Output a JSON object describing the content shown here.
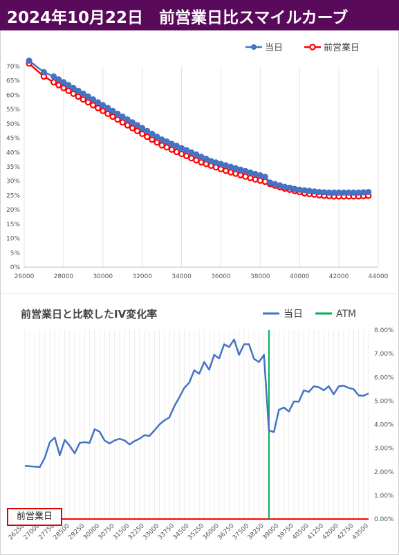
{
  "banner": {
    "title": "2024年10月22日　前営業日比スマイルカーブ",
    "bg_color": "#5a0a5a"
  },
  "chart_data": [
    {
      "type": "line",
      "title": "",
      "xlabel": "",
      "ylabel": "",
      "xlim": [
        26000,
        44000
      ],
      "ylim": [
        0,
        0.7
      ],
      "x_ticks": [
        26000,
        28000,
        30000,
        32000,
        34000,
        36000,
        38000,
        40000,
        42000,
        44000
      ],
      "y_ticks": [
        0,
        0.05,
        0.1,
        0.15,
        0.2,
        0.25,
        0.3,
        0.35,
        0.4,
        0.45,
        0.5,
        0.55,
        0.6,
        0.65,
        0.7
      ],
      "y_tick_labels": [
        "0%",
        "5%",
        "10%",
        "15%",
        "20%",
        "25%",
        "30%",
        "35%",
        "40%",
        "45%",
        "50%",
        "55%",
        "60%",
        "65%",
        "70%"
      ],
      "grid": "vertical",
      "legend_position": "top-right",
      "series": [
        {
          "name": "当日",
          "color": "#4472c4",
          "x": [
            26250,
            27000,
            27500,
            27750,
            28000,
            28250,
            28500,
            28750,
            29000,
            29250,
            29500,
            29750,
            30000,
            30250,
            30500,
            30750,
            31000,
            31250,
            31500,
            31750,
            32000,
            32250,
            32500,
            32750,
            33000,
            33250,
            33500,
            33750,
            34000,
            34250,
            34500,
            34750,
            35000,
            35250,
            35500,
            35750,
            36000,
            36250,
            36500,
            36750,
            37000,
            37250,
            37500,
            37750,
            38000,
            38250,
            38500,
            38750,
            39000,
            39250,
            39500,
            39750,
            40000,
            40250,
            40500,
            40750,
            41000,
            41250,
            41500,
            41750,
            42000,
            42250,
            42500,
            42750,
            43000,
            43250,
            43500
          ],
          "y": [
            0.72,
            0.68,
            0.665,
            0.655,
            0.645,
            0.635,
            0.625,
            0.615,
            0.605,
            0.595,
            0.585,
            0.575,
            0.565,
            0.555,
            0.545,
            0.535,
            0.525,
            0.515,
            0.505,
            0.495,
            0.485,
            0.475,
            0.465,
            0.455,
            0.445,
            0.438,
            0.43,
            0.423,
            0.415,
            0.408,
            0.4,
            0.393,
            0.385,
            0.378,
            0.37,
            0.365,
            0.36,
            0.355,
            0.35,
            0.345,
            0.34,
            0.335,
            0.33,
            0.325,
            0.32,
            0.315,
            0.295,
            0.29,
            0.285,
            0.28,
            0.277,
            0.273,
            0.27,
            0.268,
            0.266,
            0.264,
            0.262,
            0.261,
            0.26,
            0.26,
            0.26,
            0.26,
            0.26,
            0.26,
            0.26,
            0.261,
            0.262
          ]
        },
        {
          "name": "前営業日",
          "color": "#ff0000",
          "x": [
            26250,
            27000,
            27500,
            27750,
            28000,
            28250,
            28500,
            28750,
            29000,
            29250,
            29500,
            29750,
            30000,
            30250,
            30500,
            30750,
            31000,
            31250,
            31500,
            31750,
            32000,
            32250,
            32500,
            32750,
            33000,
            33250,
            33500,
            33750,
            34000,
            34250,
            34500,
            34750,
            35000,
            35250,
            35500,
            35750,
            36000,
            36250,
            36500,
            36750,
            37000,
            37250,
            37500,
            37750,
            38000,
            38250,
            38500,
            38750,
            39000,
            39250,
            39500,
            39750,
            40000,
            40250,
            40500,
            40750,
            41000,
            41250,
            41500,
            41750,
            42000,
            42250,
            42500,
            42750,
            43000,
            43250,
            43500
          ],
          "y": [
            0.71,
            0.665,
            0.645,
            0.635,
            0.625,
            0.615,
            0.605,
            0.595,
            0.585,
            0.575,
            0.565,
            0.555,
            0.545,
            0.535,
            0.525,
            0.515,
            0.505,
            0.495,
            0.485,
            0.475,
            0.465,
            0.455,
            0.445,
            0.435,
            0.425,
            0.418,
            0.41,
            0.402,
            0.395,
            0.388,
            0.38,
            0.373,
            0.366,
            0.36,
            0.354,
            0.348,
            0.342,
            0.336,
            0.331,
            0.326,
            0.321,
            0.316,
            0.311,
            0.306,
            0.302,
            0.298,
            0.29,
            0.284,
            0.279,
            0.274,
            0.27,
            0.266,
            0.262,
            0.258,
            0.255,
            0.253,
            0.251,
            0.249,
            0.248,
            0.247,
            0.247,
            0.247,
            0.247,
            0.247,
            0.247,
            0.248,
            0.249
          ]
        }
      ]
    },
    {
      "type": "line",
      "title": "前営業日と比較したIV変化率",
      "xlabel": "",
      "ylabel": "",
      "ylim": [
        0,
        0.08
      ],
      "y_axis_side": "right",
      "y_ticks": [
        0,
        0.01,
        0.02,
        0.03,
        0.04,
        0.05,
        0.06,
        0.07,
        0.08
      ],
      "y_tick_labels": [
        "0.00%",
        "1.00%",
        "2.00%",
        "3.00%",
        "4.00%",
        "5.00%",
        "6.00%",
        "7.00%",
        "8.00%"
      ],
      "x_tick_labels": [
        "26250",
        "27000",
        "27750",
        "28500",
        "29250",
        "30000",
        "30750",
        "31500",
        "32250",
        "33000",
        "33750",
        "34500",
        "35250",
        "36000",
        "36750",
        "37500",
        "38250",
        "39000",
        "39750",
        "40500",
        "41250",
        "42000",
        "42750",
        "43500"
      ],
      "grid": "vertical",
      "legend_position": "top-right",
      "x_step": 250,
      "x_start": 26250,
      "x_end": 43500,
      "series": [
        {
          "name": "当日",
          "color": "#4472c4",
          "points": [
            [
              26250,
              0.0225
            ],
            [
              27000,
              0.022
            ],
            [
              27250,
              0.026
            ],
            [
              27500,
              0.0325
            ],
            [
              27750,
              0.0345
            ],
            [
              28000,
              0.027
            ],
            [
              28250,
              0.0335
            ],
            [
              28500,
              0.031
            ],
            [
              28750,
              0.0278
            ],
            [
              29000,
              0.0322
            ],
            [
              29250,
              0.0326
            ],
            [
              29500,
              0.0322
            ],
            [
              29750,
              0.038
            ],
            [
              30000,
              0.037
            ],
            [
              30250,
              0.0333
            ],
            [
              30500,
              0.032
            ],
            [
              30750,
              0.0333
            ],
            [
              31000,
              0.034
            ],
            [
              31250,
              0.0333
            ],
            [
              31500,
              0.0316
            ],
            [
              31750,
              0.033
            ],
            [
              32000,
              0.034
            ],
            [
              32250,
              0.0355
            ],
            [
              32500,
              0.0352
            ],
            [
              32750,
              0.0375
            ],
            [
              33000,
              0.04
            ],
            [
              33250,
              0.0418
            ],
            [
              33500,
              0.043
            ],
            [
              33750,
              0.0478
            ],
            [
              34000,
              0.0515
            ],
            [
              34250,
              0.0555
            ],
            [
              34500,
              0.0578
            ],
            [
              34750,
              0.063
            ],
            [
              35000,
              0.0615
            ],
            [
              35250,
              0.0665
            ],
            [
              35500,
              0.0632
            ],
            [
              35750,
              0.0695
            ],
            [
              36000,
              0.068
            ],
            [
              36250,
              0.074
            ],
            [
              36500,
              0.0728
            ],
            [
              36750,
              0.076
            ],
            [
              37000,
              0.0695
            ],
            [
              37250,
              0.074
            ],
            [
              37500,
              0.074
            ],
            [
              37750,
              0.0678
            ],
            [
              38000,
              0.0665
            ],
            [
              38250,
              0.0695
            ],
            [
              38500,
              0.0375
            ],
            [
              38750,
              0.0368
            ],
            [
              39000,
              0.0462
            ],
            [
              39250,
              0.0472
            ],
            [
              39500,
              0.0455
            ],
            [
              39750,
              0.0498
            ],
            [
              40000,
              0.0497
            ],
            [
              40250,
              0.0545
            ],
            [
              40500,
              0.0538
            ],
            [
              40750,
              0.0562
            ],
            [
              41000,
              0.0558
            ],
            [
              41250,
              0.0545
            ],
            [
              41500,
              0.0562
            ],
            [
              41750,
              0.0528
            ],
            [
              42000,
              0.0562
            ],
            [
              42250,
              0.0565
            ],
            [
              42500,
              0.0555
            ],
            [
              42750,
              0.055
            ],
            [
              43000,
              0.0523
            ],
            [
              43250,
              0.0522
            ],
            [
              43500,
              0.0532
            ]
          ]
        },
        {
          "name": "ATM",
          "color": "#00b050",
          "vertical_at": 38500
        },
        {
          "name": "前営業日",
          "color": "#ff0000",
          "constant": 0.0
        }
      ]
    }
  ]
}
